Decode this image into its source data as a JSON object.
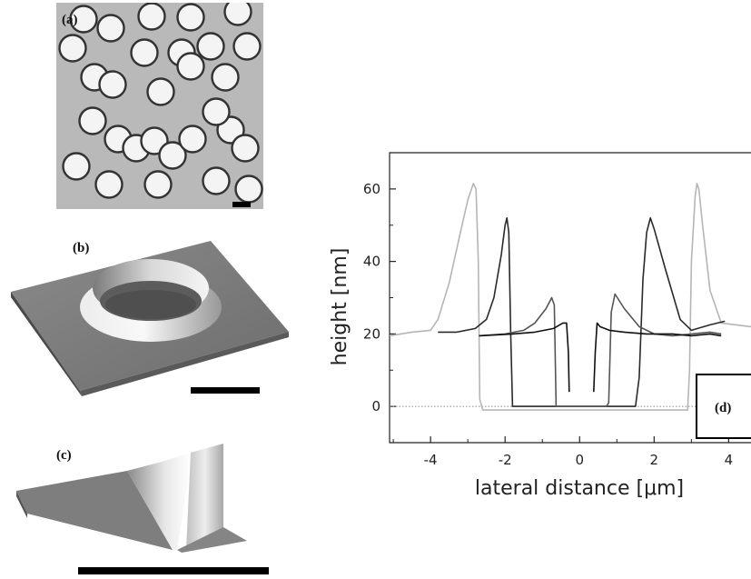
{
  "panels": {
    "a": {
      "label": "(a)"
    },
    "b": {
      "label": "(b)"
    },
    "c": {
      "label": "(c)"
    },
    "d": {
      "label": "(d)"
    }
  },
  "chart_data": {
    "type": "line",
    "xlabel": "lateral distance  [μm]",
    "ylabel": "height  [nm]",
    "xlim": [
      -5.1,
      4.6
    ],
    "ylim": [
      -10,
      70
    ],
    "xticks": [
      -4,
      -2,
      0,
      2,
      4
    ],
    "yticks": [
      0,
      20,
      40,
      60
    ],
    "baseline": 0,
    "series": [
      {
        "color": "#b5b5b5",
        "x": [
          -5.1,
          -4.5,
          -4.0,
          -3.8,
          -3.5,
          -3.2,
          -3.0,
          -2.85,
          -2.78,
          -2.72,
          -2.68,
          -2.6,
          -2.5,
          -1.0,
          0.0,
          1.0,
          2.5,
          2.9,
          2.95,
          3.0,
          3.1,
          3.15,
          3.2,
          3.3,
          3.5,
          3.8,
          4.2,
          4.6
        ],
        "y": [
          19.5,
          20.5,
          21,
          24,
          34,
          48,
          57,
          61.5,
          60,
          40,
          2,
          -1,
          -1,
          -1,
          -1,
          -1,
          -1,
          -1,
          10,
          40,
          58,
          61.5,
          60,
          50,
          32,
          23,
          22.5,
          22
        ]
      },
      {
        "color": "#2a2a2a",
        "x": [
          -3.8,
          -3.3,
          -2.8,
          -2.5,
          -2.3,
          -2.1,
          -2.0,
          -1.95,
          -1.9,
          -1.85,
          -1.8,
          -1.5,
          -1.0,
          0.0,
          1.0,
          1.5,
          1.6,
          1.7,
          1.8,
          1.9,
          2.0,
          2.3,
          2.7,
          3.0,
          3.5,
          3.9
        ],
        "y": [
          20.5,
          20.5,
          21.5,
          24,
          30,
          42,
          50,
          52,
          48,
          20,
          0,
          0,
          0,
          0,
          0,
          0,
          8,
          35,
          48,
          52,
          49,
          38,
          24,
          21,
          22.5,
          23.5
        ]
      },
      {
        "color": "#555555",
        "x": [
          -2.7,
          -2.0,
          -1.5,
          -1.2,
          -0.9,
          -0.75,
          -0.68,
          -0.63,
          -0.55,
          -0.3,
          0.0,
          0.5,
          0.72,
          0.78,
          0.85,
          0.95,
          1.2,
          1.6,
          2.0,
          2.5,
          3.0,
          3.5,
          3.8
        ],
        "y": [
          19.5,
          20,
          21,
          23,
          27,
          30,
          28,
          0,
          0,
          0,
          0,
          0,
          0,
          1,
          26,
          31,
          27,
          22,
          20,
          19.5,
          20,
          20.5,
          20
        ]
      },
      {
        "color": "#111111",
        "x": [
          -2.7,
          -1.8,
          -1.2,
          -0.7,
          -0.45,
          -0.35,
          -0.3,
          -0.28
        ],
        "y": [
          19.5,
          20,
          20.5,
          21.5,
          23,
          23,
          15,
          4
        ]
      },
      {
        "color": "#111111",
        "x": [
          0.38,
          0.42,
          0.47,
          0.55,
          0.8,
          1.2,
          1.8,
          2.5,
          3.0,
          3.5,
          3.8
        ],
        "y": [
          4,
          15,
          23,
          22,
          21,
          20.5,
          20,
          20,
          19.5,
          20,
          19.5
        ]
      }
    ]
  }
}
